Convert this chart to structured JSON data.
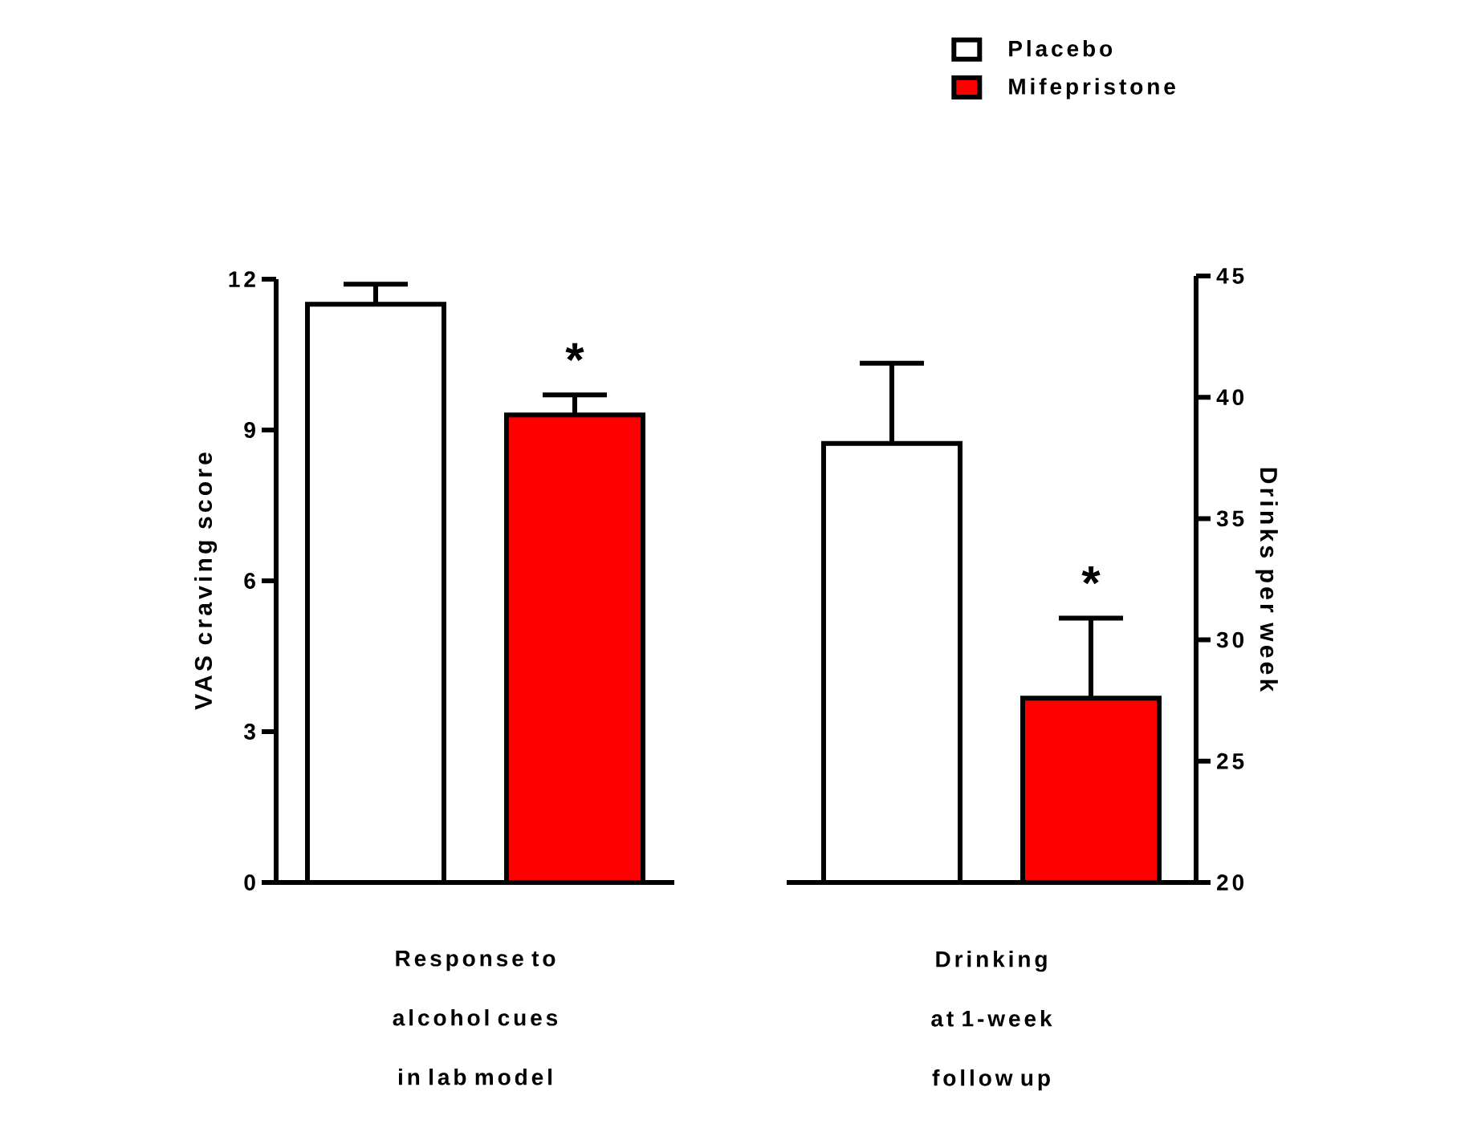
{
  "chart_data": [
    {
      "type": "bar",
      "categories": [
        "Response to alcohol cues in lab model"
      ],
      "ylabel": "VAS craving score",
      "ylim": [
        0,
        12
      ],
      "yticks": [
        0,
        3,
        6,
        9,
        12
      ],
      "series": [
        {
          "color": "#ffffff",
          "values": [
            11.5
          ],
          "errors": [
            0.4
          ]
        },
        {
          "color": "#ff0000",
          "values": [
            9.3
          ],
          "errors": [
            0.4
          ]
        }
      ],
      "annotations": [
        "*"
      ]
    },
    {
      "type": "bar",
      "categories": [
        "Drinking at 1-week follow up"
      ],
      "ylabel": "Drinks per week",
      "ylim": [
        20,
        45
      ],
      "yticks": [
        20,
        25,
        30,
        35,
        40,
        45
      ],
      "legend": "top",
      "series": [
        {
          "name": "Placebo",
          "color": "#ffffff",
          "values": [
            38.1
          ],
          "errors": [
            3.3
          ]
        },
        {
          "name": "Mifepristone",
          "color": "#ff0000",
          "values": [
            27.6
          ],
          "errors": [
            3.3
          ]
        }
      ],
      "annotations": [
        "*"
      ]
    }
  ]
}
